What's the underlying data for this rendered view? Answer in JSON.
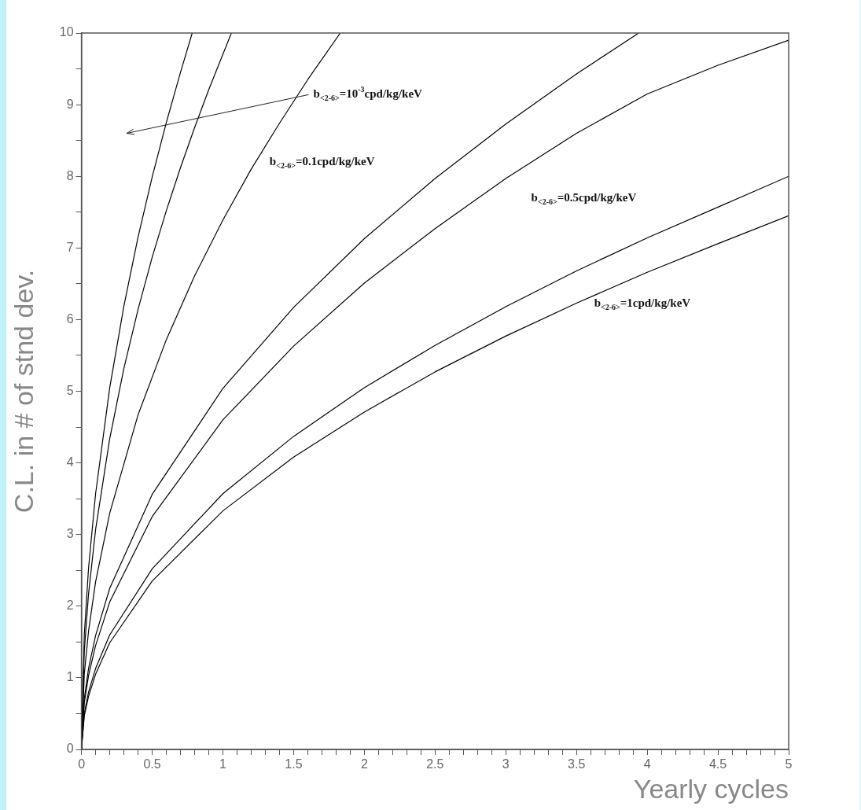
{
  "chart_data": {
    "type": "line",
    "xlabel": "Yearly cycles",
    "ylabel": "C.L. in # of stnd dev.",
    "xlim": [
      0,
      5
    ],
    "ylim": [
      0,
      10
    ],
    "xticks": [
      0,
      {
        "value": 0.1,
        "label": null
      },
      {
        "value": 0.2,
        "label": null
      },
      {
        "value": 0.3,
        "label": null
      },
      {
        "value": 0.4,
        "label": null
      },
      0.5,
      {
        "value": 0.6,
        "label": null
      },
      {
        "value": 0.7,
        "label": null
      },
      {
        "value": 0.8,
        "label": null
      },
      {
        "value": 0.9,
        "label": null
      },
      1,
      {
        "value": 1.1,
        "label": null
      },
      {
        "value": 1.2,
        "label": null
      },
      {
        "value": 1.3,
        "label": null
      },
      {
        "value": 1.4,
        "label": null
      },
      1.5,
      {
        "value": 1.6,
        "label": null
      },
      {
        "value": 1.7,
        "label": null
      },
      {
        "value": 1.8,
        "label": null
      },
      {
        "value": 1.9,
        "label": null
      },
      2,
      {
        "value": 2.1,
        "label": null
      },
      {
        "value": 2.2,
        "label": null
      },
      {
        "value": 2.3,
        "label": null
      },
      {
        "value": 2.4,
        "label": null
      },
      2.5,
      {
        "value": 2.6,
        "label": null
      },
      {
        "value": 2.7,
        "label": null
      },
      {
        "value": 2.8,
        "label": null
      },
      {
        "value": 2.9,
        "label": null
      },
      3,
      {
        "value": 3.1,
        "label": null
      },
      {
        "value": 3.2,
        "label": null
      },
      {
        "value": 3.3,
        "label": null
      },
      {
        "value": 3.4,
        "label": null
      },
      3.5,
      {
        "value": 3.6,
        "label": null
      },
      {
        "value": 3.7,
        "label": null
      },
      {
        "value": 3.8,
        "label": null
      },
      {
        "value": 3.9,
        "label": null
      },
      4,
      {
        "value": 4.1,
        "label": null
      },
      {
        "value": 4.2,
        "label": null
      },
      {
        "value": 4.3,
        "label": null
      },
      {
        "value": 4.4,
        "label": null
      },
      4.5,
      {
        "value": 4.6,
        "label": null
      },
      {
        "value": 4.7,
        "label": null
      },
      {
        "value": 4.8,
        "label": null
      },
      {
        "value": 4.9,
        "label": null
      },
      5
    ],
    "yticks": [
      0,
      {
        "value": 0.5,
        "label": null
      },
      1,
      {
        "value": 1.5,
        "label": null
      },
      2,
      {
        "value": 2.5,
        "label": null
      },
      3,
      {
        "value": 3.5,
        "label": null
      },
      4,
      {
        "value": 4.5,
        "label": null
      },
      5,
      {
        "value": 5.5,
        "label": null
      },
      6,
      {
        "value": 6.5,
        "label": null
      },
      7,
      {
        "value": 7.5,
        "label": null
      },
      8,
      {
        "value": 8.5,
        "label": null
      },
      9,
      {
        "value": 9.5,
        "label": null
      },
      10
    ],
    "grid": false,
    "legend": false,
    "series": [
      {
        "color": "#000000",
        "x": [
          0,
          0.02,
          0.05,
          0.1,
          0.2,
          0.3,
          0.4,
          0.5,
          0.6,
          0.7,
          0.783
        ],
        "values": [
          0,
          1.6,
          2.53,
          3.57,
          5.05,
          6.19,
          7.15,
          7.99,
          8.75,
          9.45,
          10
        ]
      },
      {
        "color": "#000000",
        "x": [
          0,
          0.02,
          0.05,
          0.1,
          0.2,
          0.3,
          0.4,
          0.5,
          0.6,
          0.7,
          0.8,
          0.9,
          1.06
        ],
        "values": [
          0,
          1.37,
          2.17,
          3.07,
          4.34,
          5.32,
          6.14,
          6.87,
          7.52,
          8.12,
          8.68,
          9.21,
          10
        ]
      },
      {
        "color": "#000000",
        "x": [
          0,
          0.02,
          0.05,
          0.1,
          0.2,
          0.4,
          0.6,
          0.8,
          1,
          1.2,
          1.4,
          1.6,
          1.83
        ],
        "values": [
          0,
          1.05,
          1.65,
          2.34,
          3.3,
          4.67,
          5.72,
          6.61,
          7.39,
          8.1,
          8.74,
          9.35,
          10
        ]
      },
      {
        "color": "#000000",
        "x": [
          0,
          0.02,
          0.05,
          0.1,
          0.2,
          0.5,
          1,
          1.5,
          2,
          2.5,
          3,
          3.5,
          3.94
        ],
        "values": [
          0,
          0.71,
          1.13,
          1.59,
          2.25,
          3.56,
          5.04,
          6.17,
          7.13,
          7.97,
          8.73,
          9.43,
          10
        ]
      },
      {
        "color": "#000000",
        "x": [
          0,
          0.02,
          0.05,
          0.1,
          0.2,
          0.5,
          1,
          1.5,
          2,
          2.5,
          3,
          3.5,
          4,
          4.5,
          5
        ],
        "values": [
          0,
          0.65,
          1.03,
          1.45,
          2.06,
          3.25,
          4.6,
          5.63,
          6.51,
          7.27,
          7.97,
          8.6,
          9.15,
          9.55,
          9.9
        ]
      },
      {
        "color": "#000000",
        "x": [
          0,
          0.02,
          0.05,
          0.1,
          0.2,
          0.5,
          1,
          1.5,
          2,
          2.5,
          3,
          3.5,
          4,
          4.5,
          5
        ],
        "values": [
          0,
          0.5,
          0.8,
          1.13,
          1.6,
          2.52,
          3.57,
          4.37,
          5.05,
          5.64,
          6.18,
          6.68,
          7.14,
          7.57,
          8.0
        ]
      },
      {
        "color": "#000000",
        "x": [
          0,
          0.02,
          0.05,
          0.1,
          0.2,
          0.5,
          1,
          1.5,
          2,
          2.5,
          3,
          3.5,
          4,
          4.5,
          5
        ],
        "values": [
          0,
          0.47,
          0.74,
          1.05,
          1.49,
          2.35,
          3.33,
          4.08,
          4.71,
          5.27,
          5.77,
          6.23,
          6.66,
          7.06,
          7.45
        ]
      }
    ],
    "annotations": [
      "b$_{<2-6>}$=10$^{-3}$cpd/kg/keV",
      "b$_{<2-6>}$=0.1cpd/kg/keV",
      "b$_{<2-6>}$=0.5cpd/kg/keV",
      "b$_{<2-6>}$=1cpd/kg/keV"
    ]
  }
}
